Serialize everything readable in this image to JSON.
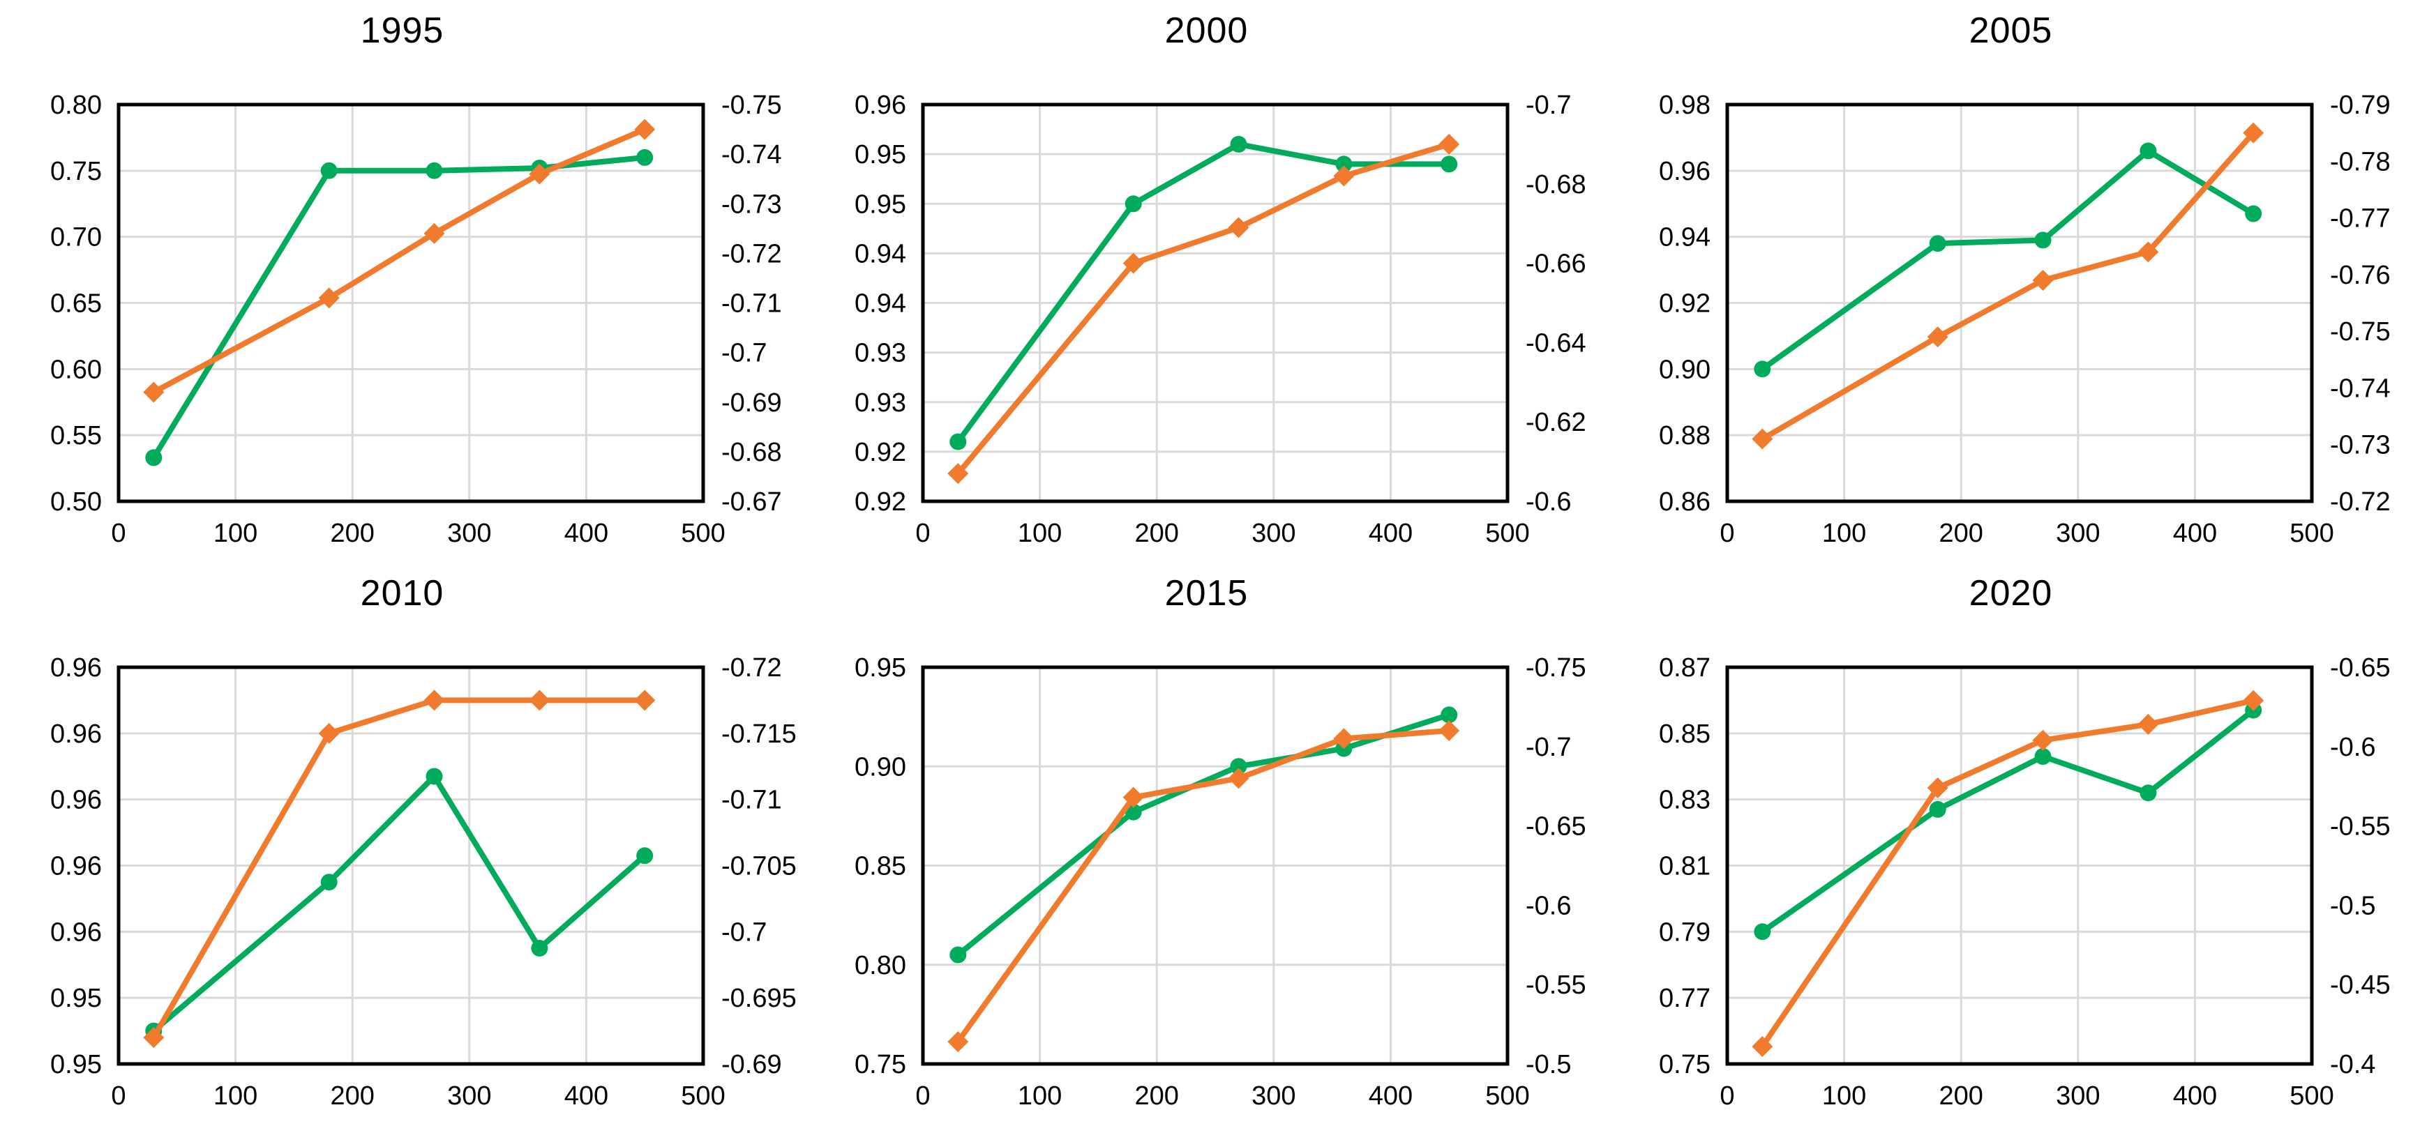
{
  "colors": {
    "green_series": "#00AC5C",
    "orange_series": "#F07B2D",
    "gridline": "#D9D9D9",
    "axis_frame": "#000000",
    "tick_text": "#000000"
  },
  "chart_data": [
    {
      "type": "line",
      "title": "1995",
      "x": [
        30,
        180,
        270,
        360,
        450
      ],
      "x_ticks": [
        "0",
        "100",
        "200",
        "300",
        "400",
        "500"
      ],
      "x_range": [
        0,
        500
      ],
      "grid": true,
      "legend": "none",
      "left_axis": {
        "tick_labels_top_to_bottom": [
          "0.80",
          "0.75",
          "0.70",
          "0.65",
          "0.60",
          "0.55",
          "0.50"
        ],
        "range_bottom_top": [
          0.5,
          0.8
        ]
      },
      "right_axis": {
        "tick_labels_top_to_bottom": [
          "-0.75",
          "-0.74",
          "-0.73",
          "-0.72",
          "-0.71",
          "-0.7",
          "-0.69",
          "-0.68",
          "-0.67"
        ],
        "range_bottom_top": [
          -0.67,
          -0.75
        ]
      },
      "series": [
        {
          "name": "green-circles",
          "axis": "left",
          "marker": "circle",
          "color_key": "green_series",
          "values": [
            0.533,
            0.75,
            0.75,
            0.752,
            0.76
          ]
        },
        {
          "name": "orange-diamonds",
          "axis": "right",
          "marker": "diamond",
          "color_key": "orange_series",
          "values": [
            -0.692,
            -0.711,
            -0.724,
            -0.736,
            -0.745
          ]
        }
      ]
    },
    {
      "type": "line",
      "title": "2000",
      "x": [
        30,
        180,
        270,
        360,
        450
      ],
      "x_ticks": [
        "0",
        "100",
        "200",
        "300",
        "400",
        "500"
      ],
      "x_range": [
        0,
        500
      ],
      "grid": true,
      "legend": "none",
      "left_axis": {
        "tick_labels_top_to_bottom": [
          "0.96",
          "0.95",
          "0.95",
          "0.94",
          "0.94",
          "0.93",
          "0.93",
          "0.92",
          "0.92"
        ],
        "range_bottom_top": [
          0.92,
          0.96
        ]
      },
      "right_axis": {
        "tick_labels_top_to_bottom": [
          "-0.7",
          "-0.68",
          "-0.66",
          "-0.64",
          "-0.62",
          "-0.6"
        ],
        "range_bottom_top": [
          -0.6,
          -0.7
        ]
      },
      "series": [
        {
          "name": "green-circles",
          "axis": "left",
          "marker": "circle",
          "color_key": "green_series",
          "values": [
            0.926,
            0.95,
            0.956,
            0.954,
            0.954
          ]
        },
        {
          "name": "orange-diamonds",
          "axis": "right",
          "marker": "diamond",
          "color_key": "orange_series",
          "values": [
            -0.607,
            -0.66,
            -0.669,
            -0.682,
            -0.69
          ]
        }
      ]
    },
    {
      "type": "line",
      "title": "2005",
      "x": [
        30,
        180,
        270,
        360,
        450
      ],
      "x_ticks": [
        "0",
        "100",
        "200",
        "300",
        "400",
        "500"
      ],
      "x_range": [
        0,
        500
      ],
      "grid": true,
      "legend": "none",
      "left_axis": {
        "tick_labels_top_to_bottom": [
          "0.98",
          "0.96",
          "0.94",
          "0.92",
          "0.90",
          "0.88",
          "0.86"
        ],
        "range_bottom_top": [
          0.86,
          0.98
        ]
      },
      "right_axis": {
        "tick_labels_top_to_bottom": [
          "-0.79",
          "-0.78",
          "-0.77",
          "-0.76",
          "-0.75",
          "-0.74",
          "-0.73",
          "-0.72"
        ],
        "range_bottom_top": [
          -0.72,
          -0.79
        ]
      },
      "series": [
        {
          "name": "green-circles",
          "axis": "left",
          "marker": "circle",
          "color_key": "green_series",
          "values": [
            0.9,
            0.938,
            0.939,
            0.966,
            0.947
          ]
        },
        {
          "name": "orange-diamonds",
          "axis": "right",
          "marker": "diamond",
          "color_key": "orange_series",
          "values": [
            -0.731,
            -0.749,
            -0.759,
            -0.764,
            -0.785
          ]
        }
      ]
    },
    {
      "type": "line",
      "title": "2010",
      "x": [
        30,
        180,
        270,
        360,
        450
      ],
      "x_ticks": [
        "0",
        "100",
        "200",
        "300",
        "400",
        "500"
      ],
      "x_range": [
        0,
        500
      ],
      "grid": true,
      "legend": "none",
      "left_axis": {
        "tick_labels_top_to_bottom": [
          "0.96",
          "0.96",
          "0.96",
          "0.96",
          "0.96",
          "0.95",
          "0.95"
        ],
        "range_bottom_top": [
          0.948,
          0.96
        ]
      },
      "right_axis": {
        "tick_labels_top_to_bottom": [
          "-0.72",
          "-0.715",
          "-0.71",
          "-0.705",
          "-0.7",
          "-0.695",
          "-0.69"
        ],
        "range_bottom_top": [
          -0.69,
          -0.72
        ]
      },
      "series": [
        {
          "name": "green-circles",
          "axis": "left",
          "marker": "circle",
          "color_key": "green_series",
          "values": [
            0.949,
            0.9535,
            0.9567,
            0.9515,
            0.9543
          ]
        },
        {
          "name": "orange-diamonds",
          "axis": "right",
          "marker": "diamond",
          "color_key": "orange_series",
          "values": [
            -0.692,
            -0.715,
            -0.7175,
            -0.7175,
            -0.7175
          ]
        }
      ]
    },
    {
      "type": "line",
      "title": "2015",
      "x": [
        30,
        180,
        270,
        360,
        450
      ],
      "x_ticks": [
        "0",
        "100",
        "200",
        "300",
        "400",
        "500"
      ],
      "x_range": [
        0,
        500
      ],
      "grid": true,
      "legend": "none",
      "left_axis": {
        "tick_labels_top_to_bottom": [
          "0.95",
          "0.90",
          "0.85",
          "0.80",
          "0.75"
        ],
        "range_bottom_top": [
          0.75,
          0.95
        ]
      },
      "right_axis": {
        "tick_labels_top_to_bottom": [
          "-0.75",
          "-0.7",
          "-0.65",
          "-0.6",
          "-0.55",
          "-0.5"
        ],
        "range_bottom_top": [
          -0.5,
          -0.75
        ]
      },
      "series": [
        {
          "name": "green-circles",
          "axis": "left",
          "marker": "circle",
          "color_key": "green_series",
          "values": [
            0.805,
            0.877,
            0.9,
            0.909,
            0.926
          ]
        },
        {
          "name": "orange-diamonds",
          "axis": "right",
          "marker": "diamond",
          "color_key": "orange_series",
          "values": [
            -0.514,
            -0.668,
            -0.68,
            -0.705,
            -0.71
          ]
        }
      ]
    },
    {
      "type": "line",
      "title": "2020",
      "x": [
        30,
        180,
        270,
        360,
        450
      ],
      "x_ticks": [
        "0",
        "100",
        "200",
        "300",
        "400",
        "500"
      ],
      "x_range": [
        0,
        500
      ],
      "grid": true,
      "legend": "none",
      "left_axis": {
        "tick_labels_top_to_bottom": [
          "0.87",
          "0.85",
          "0.83",
          "0.81",
          "0.79",
          "0.77",
          "0.75"
        ],
        "range_bottom_top": [
          0.75,
          0.87
        ]
      },
      "right_axis": {
        "tick_labels_top_to_bottom": [
          "-0.65",
          "-0.6",
          "-0.55",
          "-0.5",
          "-0.45",
          "-0.4"
        ],
        "range_bottom_top": [
          -0.4,
          -0.65
        ]
      },
      "series": [
        {
          "name": "green-circles",
          "axis": "left",
          "marker": "circle",
          "color_key": "green_series",
          "values": [
            0.79,
            0.827,
            0.843,
            0.832,
            0.857
          ]
        },
        {
          "name": "orange-diamonds",
          "axis": "right",
          "marker": "diamond",
          "color_key": "orange_series",
          "values": [
            -0.411,
            -0.574,
            -0.604,
            -0.614,
            -0.629
          ]
        }
      ]
    }
  ]
}
